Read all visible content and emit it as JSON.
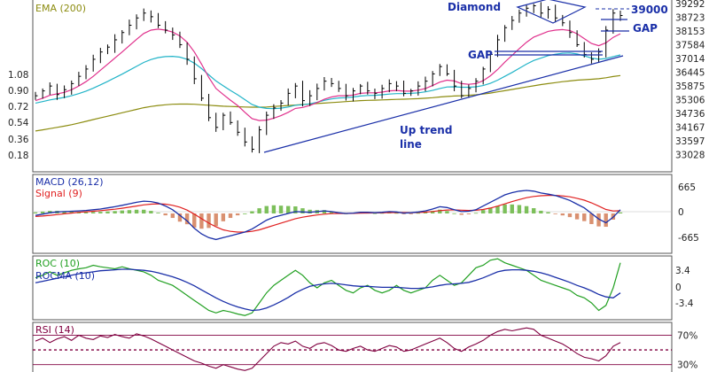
{
  "chart_data": [
    {
      "type": "line",
      "panel": "price",
      "legend": [
        "EMA (200)"
      ],
      "left_ticks": [
        "1.08",
        "0.90",
        "0.72",
        "0.54",
        "0.36",
        "0.18"
      ],
      "right_ticks": [
        "39292",
        "38723",
        "38153",
        "37584",
        "37014",
        "36445",
        "35875",
        "35306",
        "34736",
        "34167",
        "33597",
        "33028"
      ],
      "ylim": [
        33028,
        39292
      ],
      "annotations": [
        "Diamond",
        "39000",
        "GAP",
        "GAP",
        "Up trend",
        "line"
      ],
      "colors": {
        "bars": "#000000",
        "ema_fast": "#e0308c",
        "ema_mid": "#22b4c8",
        "ema_200": "#8c8c10",
        "trend": "#1a2fa8"
      },
      "close": [
        35500,
        35700,
        35900,
        35550,
        35750,
        36000,
        36300,
        36600,
        37000,
        37300,
        37500,
        37800,
        38100,
        38400,
        38700,
        38900,
        38750,
        38400,
        38200,
        38000,
        37600,
        37000,
        36200,
        35400,
        34600,
        34200,
        34700,
        34400,
        34000,
        33600,
        33300,
        34100,
        34700,
        35000,
        35200,
        35600,
        35900,
        35300,
        35500,
        35800,
        36100,
        36000,
        35800,
        35500,
        35700,
        35900,
        35700,
        35600,
        35800,
        36000,
        35900,
        35600,
        35700,
        35900,
        36100,
        36400,
        36700,
        36400,
        35900,
        35500,
        35800,
        36100,
        36600,
        37200,
        37800,
        38300,
        38600,
        38900,
        39100,
        39200,
        38900,
        39050,
        38700,
        38500,
        38100,
        37600,
        37200,
        37000,
        37300,
        38200,
        38900,
        38800
      ],
      "ema_fast": [
        35300,
        35400,
        35520,
        35580,
        35640,
        35750,
        35900,
        36080,
        36300,
        36550,
        36800,
        37050,
        37300,
        37560,
        37820,
        38060,
        38200,
        38240,
        38200,
        38120,
        37960,
        37700,
        37300,
        36800,
        36250,
        35800,
        35550,
        35320,
        35100,
        34820,
        34560,
        34480,
        34500,
        34580,
        34680,
        34820,
        34980,
        35020,
        35100,
        35220,
        35360,
        35450,
        35500,
        35500,
        35530,
        35600,
        35620,
        35620,
        35650,
        35700,
        35720,
        35690,
        35690,
        35730,
        35800,
        35920,
        36060,
        36140,
        36110,
        36000,
        35970,
        36000,
        36120,
        36320,
        36580,
        36880,
        37160,
        37440,
        37700,
        37910,
        38030,
        38150,
        38200,
        38220,
        38180,
        38050,
        37850,
        37650,
        37560,
        37680,
        37900,
        38050
      ],
      "ema_mid": [
        35200,
        35260,
        35330,
        35380,
        35430,
        35500,
        35590,
        35690,
        35810,
        35950,
        36090,
        36240,
        36390,
        36550,
        36710,
        36870,
        36990,
        37070,
        37110,
        37120,
        37090,
        37000,
        36840,
        36620,
        36360,
        36110,
        35910,
        35720,
        35540,
        35340,
        35140,
        35030,
        34980,
        34970,
        34990,
        35040,
        35110,
        35130,
        35170,
        35230,
        35310,
        35370,
        35410,
        35420,
        35450,
        35490,
        35510,
        35520,
        35540,
        35570,
        35590,
        35590,
        35600,
        35620,
        35660,
        35720,
        35800,
        35860,
        35870,
        35850,
        35850,
        35870,
        35920,
        36010,
        36140,
        36300,
        36460,
        36630,
        36800,
        36950,
        37050,
        37150,
        37210,
        37250,
        37260,
        37220,
        37140,
        37050,
        37000,
        37030,
        37110,
        37180
      ],
      "ema_200": [
        34050,
        34100,
        34150,
        34200,
        34250,
        34310,
        34380,
        34450,
        34520,
        34590,
        34660,
        34730,
        34800,
        34870,
        34940,
        35010,
        35060,
        35100,
        35130,
        35150,
        35160,
        35160,
        35150,
        35130,
        35110,
        35090,
        35070,
        35060,
        35050,
        35040,
        35030,
        35030,
        35040,
        35060,
        35080,
        35100,
        35120,
        35140,
        35160,
        35180,
        35200,
        35220,
        35240,
        35260,
        35280,
        35300,
        35310,
        35320,
        35330,
        35340,
        35350,
        35360,
        35370,
        35380,
        35400,
        35420,
        35450,
        35470,
        35490,
        35500,
        35520,
        35540,
        35570,
        35610,
        35660,
        35710,
        35760,
        35810,
        35860,
        35910,
        35960,
        36000,
        36040,
        36080,
        36110,
        36140,
        36160,
        36180,
        36200,
        36240,
        36290,
        36330
      ]
    },
    {
      "type": "line",
      "panel": "macd",
      "legend": [
        "MACD (26,12)",
        "Signal (9)"
      ],
      "right_ticks": [
        "665",
        "0",
        "-665"
      ],
      "ylim": [
        -1000,
        1000
      ],
      "colors": {
        "macd": "#1a2fa8",
        "signal": "#e02020",
        "hist_pos": "#7cbf5a",
        "hist_neg": "#d99070"
      },
      "macd": [
        -50,
        -20,
        20,
        40,
        50,
        60,
        70,
        80,
        100,
        120,
        150,
        180,
        220,
        260,
        300,
        330,
        320,
        280,
        200,
        100,
        -50,
        -200,
        -400,
        -550,
        -650,
        -700,
        -650,
        -600,
        -550,
        -500,
        -420,
        -300,
        -180,
        -100,
        -50,
        0,
        50,
        40,
        30,
        50,
        70,
        50,
        20,
        0,
        10,
        30,
        30,
        20,
        30,
        50,
        40,
        10,
        20,
        40,
        70,
        120,
        180,
        160,
        100,
        50,
        60,
        100,
        200,
        300,
        400,
        500,
        560,
        600,
        620,
        600,
        550,
        520,
        480,
        420,
        350,
        250,
        150,
        0,
        -150,
        -250,
        -100,
        100
      ],
      "signal": [
        -80,
        -70,
        -50,
        -30,
        -10,
        10,
        30,
        45,
        60,
        75,
        95,
        115,
        140,
        170,
        200,
        230,
        250,
        260,
        250,
        220,
        170,
        90,
        -20,
        -140,
        -260,
        -360,
        -440,
        -480,
        -500,
        -500,
        -480,
        -440,
        -380,
        -320,
        -260,
        -200,
        -140,
        -100,
        -70,
        -40,
        -20,
        -5,
        0,
        0,
        2,
        8,
        12,
        14,
        17,
        23,
        26,
        23,
        22,
        26,
        35,
        52,
        77,
        94,
        96,
        87,
        82,
        85,
        108,
        146,
        197,
        258,
        318,
        374,
        423,
        458,
        477,
        486,
        485,
        472,
        448,
        408,
        356,
        285,
        198,
        108,
        66,
        73
      ]
    },
    {
      "type": "line",
      "panel": "roc",
      "legend": [
        "ROC (10)",
        "ROCMA (10)"
      ],
      "right_ticks": [
        "3.4",
        "0",
        "-3.4"
      ],
      "ylim": [
        -6,
        6
      ],
      "colors": {
        "roc": "#22a022",
        "rocma": "#1a2fa8"
      },
      "roc": [
        2.0,
        2.5,
        3.2,
        2.5,
        3.0,
        3.5,
        3.8,
        4.0,
        4.5,
        4.2,
        4.0,
        3.8,
        4.2,
        3.8,
        3.5,
        3.2,
        2.5,
        1.5,
        1.0,
        0.5,
        -0.5,
        -1.5,
        -2.5,
        -3.5,
        -4.5,
        -5.0,
        -4.5,
        -4.8,
        -5.2,
        -5.5,
        -5.0,
        -3.0,
        -1.0,
        0.5,
        1.5,
        2.5,
        3.5,
        2.5,
        1.0,
        0,
        1.0,
        1.5,
        0.5,
        -0.5,
        -1.0,
        0,
        0.5,
        -0.5,
        -1.0,
        -0.5,
        0.5,
        -0.5,
        -1.0,
        -0.5,
        0,
        1.5,
        2.5,
        1.5,
        0.5,
        1.0,
        2.5,
        4.0,
        4.5,
        5.5,
        5.8,
        5.0,
        4.5,
        4.0,
        3.5,
        2.5,
        1.5,
        1.0,
        0.5,
        0,
        -0.5,
        -1.5,
        -2.0,
        -3.0,
        -4.5,
        -3.5,
        0,
        5.0
      ],
      "rocma": [
        1.0,
        1.3,
        1.6,
        1.9,
        2.2,
        2.5,
        2.8,
        3.0,
        3.2,
        3.4,
        3.5,
        3.6,
        3.7,
        3.7,
        3.6,
        3.5,
        3.3,
        3.0,
        2.6,
        2.2,
        1.7,
        1.1,
        0.4,
        -0.4,
        -1.2,
        -2.0,
        -2.7,
        -3.3,
        -3.8,
        -4.2,
        -4.5,
        -4.4,
        -4.0,
        -3.4,
        -2.7,
        -1.9,
        -1.0,
        -0.3,
        0.3,
        0.6,
        0.8,
        0.9,
        0.8,
        0.6,
        0.4,
        0.3,
        0.3,
        0.2,
        0.1,
        0.1,
        0.1,
        0,
        -0.1,
        -0.1,
        0,
        0.2,
        0.5,
        0.7,
        0.8,
        0.9,
        1.1,
        1.5,
        2.0,
        2.6,
        3.2,
        3.5,
        3.6,
        3.6,
        3.5,
        3.3,
        3.0,
        2.6,
        2.1,
        1.6,
        1.1,
        0.5,
        0,
        -0.6,
        -1.3,
        -1.8,
        -2.0,
        -1.0
      ]
    },
    {
      "type": "line",
      "panel": "rsi",
      "legend": [
        "RSI (14)"
      ],
      "right_ticks": [
        "70%",
        "30%"
      ],
      "levels": [
        70,
        50,
        30
      ],
      "ylim": [
        20,
        85
      ],
      "colors": {
        "rsi": "#800040",
        "levels": "#800040"
      },
      "rsi": [
        62,
        66,
        60,
        65,
        68,
        63,
        70,
        66,
        64,
        69,
        67,
        71,
        68,
        66,
        72,
        69,
        65,
        60,
        55,
        50,
        45,
        40,
        35,
        32,
        28,
        25,
        30,
        27,
        24,
        22,
        25,
        35,
        45,
        55,
        60,
        58,
        62,
        55,
        52,
        58,
        60,
        56,
        50,
        48,
        52,
        55,
        50,
        48,
        52,
        56,
        54,
        48,
        50,
        54,
        58,
        62,
        66,
        60,
        52,
        48,
        54,
        58,
        63,
        70,
        75,
        78,
        76,
        78,
        80,
        78,
        70,
        66,
        62,
        58,
        52,
        45,
        40,
        38,
        35,
        42,
        55,
        60
      ]
    }
  ]
}
